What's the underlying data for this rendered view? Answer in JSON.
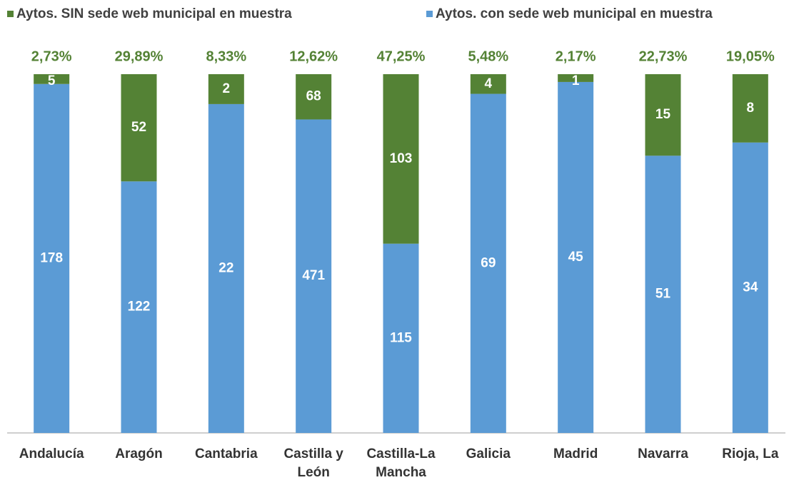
{
  "chart_data": {
    "type": "bar",
    "stack": "percent",
    "categories": [
      "Andalucía",
      "Aragón",
      "Cantabria",
      "Castilla y León",
      "Castilla-La Mancha",
      "Galicia",
      "Madrid",
      "Navarra",
      "Rioja, La"
    ],
    "series": [
      {
        "name": "Aytos. con sede web municipal en muestra",
        "color": "#5b9bd5",
        "values": [
          178,
          122,
          22,
          471,
          115,
          69,
          45,
          51,
          34
        ]
      },
      {
        "name": "Aytos. SIN sede web municipal en muestra",
        "color": "#548235",
        "values": [
          5,
          52,
          2,
          68,
          103,
          4,
          1,
          15,
          8
        ]
      }
    ],
    "annotations": {
      "color": "#548235",
      "values": [
        2.73,
        29.89,
        8.33,
        12.62,
        47.25,
        5.48,
        2.17,
        22.73,
        19.05
      ],
      "value_labels": [
        "2,73%",
        "29,89%",
        "8,33%",
        "12,62%",
        "47,25%",
        "5,48%",
        "2,17%",
        "22,73%",
        "19,05%"
      ]
    },
    "legend": "top"
  }
}
